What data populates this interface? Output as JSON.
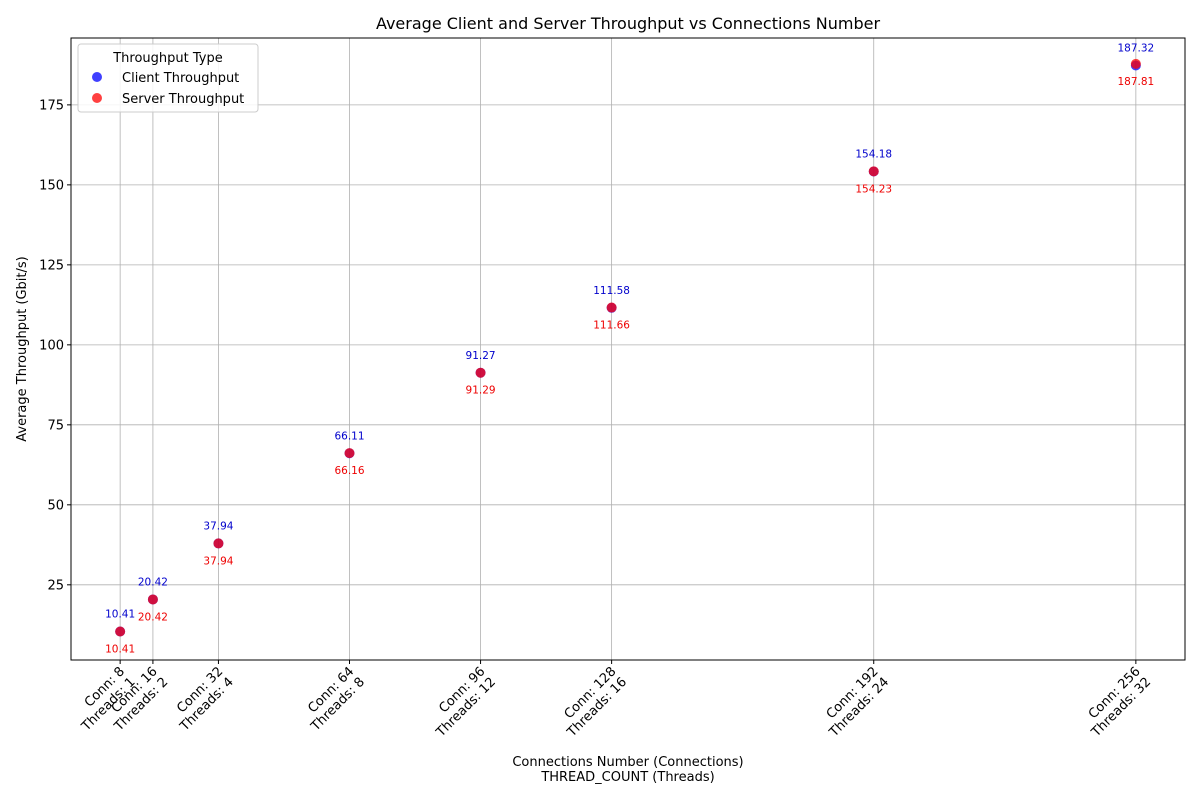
{
  "chart_data": {
    "type": "scatter",
    "title": "Average Client and Server Throughput vs Connections Number",
    "xlabel_line1": "Connections Number (Connections)",
    "xlabel_line2": "THREAD_COUNT (Threads)",
    "ylabel": "Average Throughput (Gbit/s)",
    "x": [
      8,
      16,
      32,
      64,
      96,
      128,
      192,
      256
    ],
    "x_tick_labels": [
      [
        "Conn: 8",
        "Threads: 1"
      ],
      [
        "Conn: 16",
        "Threads: 2"
      ],
      [
        "Conn: 32",
        "Threads: 4"
      ],
      [
        "Conn: 64",
        "Threads: 8"
      ],
      [
        "Conn: 96",
        "Threads: 12"
      ],
      [
        "Conn: 128",
        "Threads: 16"
      ],
      [
        "Conn: 192",
        "Threads: 24"
      ],
      [
        "Conn: 256",
        "Threads: 32"
      ]
    ],
    "xlim": [
      -4,
      268
    ],
    "ylim": [
      1.5,
      195.9
    ],
    "yticks": [
      25,
      50,
      75,
      100,
      125,
      150,
      175
    ],
    "grid": true,
    "legend": {
      "title": "Throughput Type",
      "placement": "top-left"
    },
    "series": [
      {
        "name": "Client Throughput",
        "color": "#0000ff",
        "label_color": "#0000cc",
        "values": [
          10.41,
          20.42,
          37.94,
          66.11,
          91.27,
          111.58,
          154.18,
          187.32
        ],
        "labels": [
          "10.41",
          "20.42",
          "37.94",
          "66.11",
          "91.27",
          "111.58",
          "154.18",
          "187.32"
        ]
      },
      {
        "name": "Server Throughput",
        "color": "#ff0000",
        "label_color": "#ee0000",
        "values": [
          10.41,
          20.42,
          37.94,
          66.16,
          91.29,
          111.66,
          154.23,
          187.81
        ],
        "labels": [
          "10.41",
          "20.42",
          "37.94",
          "66.16",
          "91.29",
          "111.66",
          "154.23",
          "187.81"
        ]
      }
    ]
  }
}
